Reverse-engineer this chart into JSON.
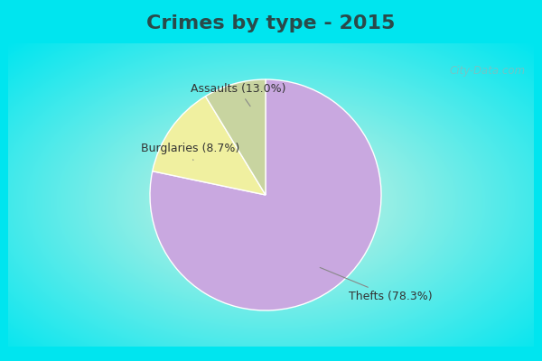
{
  "title": "Crimes by type - 2015",
  "slices": [
    78.3,
    13.0,
    8.7
  ],
  "labels": [
    "Thefts (78.3%)",
    "Assaults (13.0%)",
    "Burglaries (8.7%)"
  ],
  "colors": [
    "#C9A8E0",
    "#F0F0A0",
    "#C8D4A0"
  ],
  "background_cyan": "#00E5EF",
  "title_color": "#2A4A4A",
  "title_fontsize": 16,
  "label_fontsize": 9,
  "startangle": 90,
  "watermark": "City-Data.com"
}
